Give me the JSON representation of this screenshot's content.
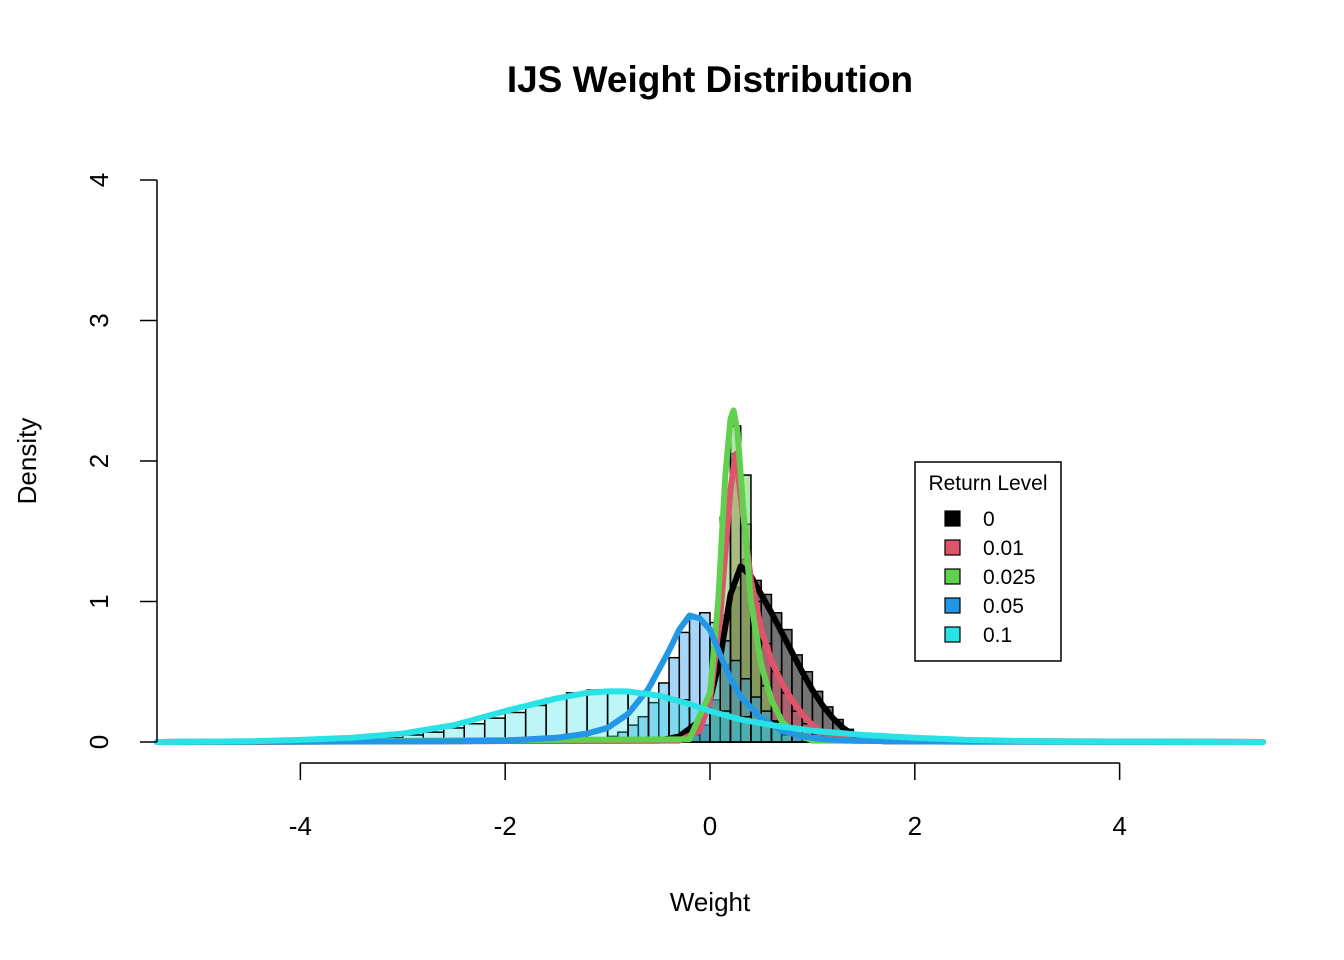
{
  "chart_data": {
    "type": "histogram-density",
    "title": "IJS Weight Distribution",
    "xlabel": "Weight",
    "ylabel": "Density",
    "xlim": [
      -5.4,
      5.4
    ],
    "ylim": [
      0,
      4
    ],
    "xticks": [
      -4,
      -2,
      0,
      2,
      4
    ],
    "yticks": [
      0,
      1,
      2,
      3,
      4
    ],
    "xtick_labels": [
      "-4",
      "-2",
      "0",
      "2",
      "4"
    ],
    "ytick_labels": [
      "0",
      "1",
      "2",
      "3",
      "4"
    ],
    "grid": false,
    "legend": {
      "title": "Return Level",
      "placement": "right",
      "entries": [
        {
          "label": "0",
          "color": "#000000"
        },
        {
          "label": "0.01",
          "color": "#DF536B"
        },
        {
          "label": "0.025",
          "color": "#61D04F"
        },
        {
          "label": "0.05",
          "color": "#2297E6"
        },
        {
          "label": "0.1",
          "color": "#28E2E5"
        }
      ]
    },
    "series": [
      {
        "name": "0",
        "color": "#000000",
        "fill": "rgba(0,0,0,0.55)",
        "bin_width": 0.1,
        "bins_x": [
          -0.3,
          -0.2,
          -0.1,
          0.0,
          0.1,
          0.2,
          0.3,
          0.4,
          0.5,
          0.6,
          0.7,
          0.8,
          0.9,
          1.0,
          1.1,
          1.2,
          1.3,
          1.4,
          1.5
        ],
        "bins_y": [
          0.02,
          0.05,
          0.12,
          0.3,
          0.55,
          1.1,
          1.3,
          1.15,
          1.05,
          0.92,
          0.8,
          0.62,
          0.5,
          0.36,
          0.25,
          0.16,
          0.09,
          0.05,
          0.02
        ],
        "density_x": [
          -5.4,
          -0.5,
          -0.3,
          -0.1,
          0.0,
          0.1,
          0.2,
          0.3,
          0.4,
          0.5,
          0.6,
          0.7,
          0.8,
          0.9,
          1.0,
          1.1,
          1.2,
          1.3,
          1.4,
          1.5,
          1.7,
          5.4
        ],
        "density_y": [
          0,
          0.01,
          0.04,
          0.15,
          0.3,
          0.6,
          1.05,
          1.25,
          1.18,
          1.05,
          0.92,
          0.78,
          0.64,
          0.5,
          0.37,
          0.26,
          0.17,
          0.1,
          0.05,
          0.02,
          0.005,
          0
        ]
      },
      {
        "name": "0.01",
        "color": "#DF536B",
        "fill": "rgba(223,83,107,0.5)",
        "bin_width": 0.1,
        "bins_x": [
          0.0,
          0.1,
          0.2,
          0.3,
          0.4,
          0.5,
          0.6,
          0.7,
          0.8,
          0.9,
          1.0,
          1.1
        ],
        "bins_y": [
          0.3,
          0.9,
          2.05,
          1.55,
          1.0,
          0.7,
          0.5,
          0.35,
          0.22,
          0.13,
          0.07,
          0.03
        ],
        "density_x": [
          -5.4,
          -0.3,
          -0.1,
          0.0,
          0.1,
          0.2,
          0.25,
          0.3,
          0.4,
          0.5,
          0.6,
          0.7,
          0.8,
          0.9,
          1.0,
          1.1,
          1.2,
          1.4,
          5.4
        ],
        "density_y": [
          0,
          0.01,
          0.08,
          0.3,
          0.9,
          1.8,
          2.05,
          1.75,
          1.15,
          0.8,
          0.58,
          0.42,
          0.3,
          0.2,
          0.12,
          0.07,
          0.04,
          0.01,
          0
        ]
      },
      {
        "name": "0.025",
        "color": "#61D04F",
        "fill": "rgba(97,208,79,0.5)",
        "bin_width": 0.1,
        "bins_x": [
          0.0,
          0.1,
          0.2,
          0.3,
          0.4,
          0.5,
          0.6,
          0.7
        ],
        "bins_y": [
          0.5,
          1.6,
          2.25,
          1.9,
          0.9,
          0.4,
          0.15,
          0.05
        ],
        "density_x": [
          -5.4,
          -0.2,
          0.0,
          0.08,
          0.15,
          0.2,
          0.23,
          0.27,
          0.32,
          0.4,
          0.5,
          0.6,
          0.7,
          0.8,
          1.0,
          5.4
        ],
        "density_y": [
          0,
          0.02,
          0.35,
          1.0,
          1.9,
          2.3,
          2.36,
          2.2,
          1.7,
          1.0,
          0.55,
          0.3,
          0.15,
          0.07,
          0.01,
          0
        ]
      },
      {
        "name": "0.05",
        "color": "#2297E6",
        "fill": "rgba(34,151,230,0.4)",
        "bin_width": 0.1,
        "bins_x": [
          -1.0,
          -0.9,
          -0.8,
          -0.7,
          -0.6,
          -0.5,
          -0.4,
          -0.3,
          -0.2,
          -0.1,
          0.0,
          0.1,
          0.2,
          0.3,
          0.4,
          0.5,
          0.6,
          0.7,
          0.8,
          0.9
        ],
        "bins_y": [
          0.04,
          0.07,
          0.12,
          0.18,
          0.28,
          0.42,
          0.6,
          0.78,
          0.88,
          0.92,
          0.85,
          0.72,
          0.58,
          0.45,
          0.32,
          0.22,
          0.14,
          0.08,
          0.05,
          0.02
        ],
        "density_x": [
          -5.4,
          -2.5,
          -2.0,
          -1.5,
          -1.2,
          -1.0,
          -0.8,
          -0.6,
          -0.4,
          -0.3,
          -0.2,
          -0.1,
          0.0,
          0.1,
          0.2,
          0.3,
          0.5,
          0.7,
          0.9,
          1.1,
          1.4,
          1.8,
          2.5,
          5.4
        ],
        "density_y": [
          0,
          0.005,
          0.01,
          0.03,
          0.06,
          0.1,
          0.2,
          0.38,
          0.65,
          0.8,
          0.9,
          0.88,
          0.8,
          0.62,
          0.45,
          0.32,
          0.17,
          0.08,
          0.04,
          0.02,
          0.01,
          0.005,
          0.002,
          0
        ]
      },
      {
        "name": "0.1",
        "color": "#28E2E5",
        "fill": "rgba(40,226,229,0.3)",
        "bin_width": 0.2,
        "bins_x": [
          -3.4,
          -3.2,
          -3.0,
          -2.8,
          -2.6,
          -2.4,
          -2.2,
          -2.0,
          -1.8,
          -1.6,
          -1.4,
          -1.2,
          -1.0,
          -0.8,
          -0.6,
          -0.4,
          -0.2,
          0.0,
          0.2,
          0.4,
          0.6,
          0.8,
          1.0,
          1.2,
          1.4,
          1.6,
          1.8
        ],
        "bins_y": [
          0.02,
          0.03,
          0.05,
          0.07,
          0.1,
          0.13,
          0.17,
          0.21,
          0.26,
          0.31,
          0.35,
          0.37,
          0.37,
          0.36,
          0.33,
          0.3,
          0.26,
          0.22,
          0.18,
          0.14,
          0.11,
          0.08,
          0.06,
          0.04,
          0.03,
          0.02,
          0.01
        ],
        "density_x": [
          -5.4,
          -4.5,
          -4.0,
          -3.5,
          -3.0,
          -2.5,
          -2.0,
          -1.5,
          -1.2,
          -1.0,
          -0.8,
          -0.5,
          -0.2,
          0.0,
          0.3,
          0.6,
          1.0,
          1.5,
          2.0,
          2.5,
          3.0,
          3.5,
          4.0,
          5.4
        ],
        "density_y": [
          0,
          0.005,
          0.015,
          0.03,
          0.06,
          0.12,
          0.22,
          0.31,
          0.35,
          0.36,
          0.36,
          0.33,
          0.27,
          0.22,
          0.16,
          0.12,
          0.08,
          0.05,
          0.03,
          0.015,
          0.008,
          0.004,
          0.002,
          0
        ]
      }
    ]
  }
}
